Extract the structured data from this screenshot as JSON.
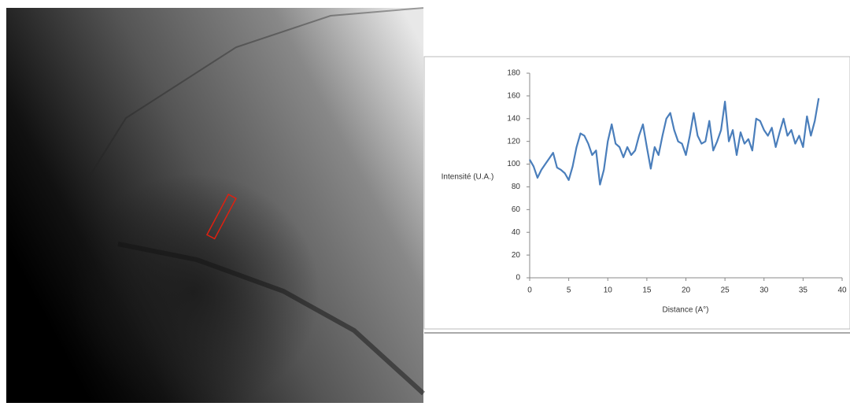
{
  "chart_data": {
    "type": "line",
    "xlabel": "Distance (A°)",
    "ylabel": "Intensité (U.A.)",
    "x": [
      0,
      0.5,
      1,
      1.5,
      2,
      2.5,
      3,
      3.5,
      4,
      4.5,
      5,
      5.5,
      6,
      6.5,
      7,
      7.5,
      8,
      8.5,
      9,
      9.5,
      10,
      10.5,
      11,
      11.5,
      12,
      12.5,
      13,
      13.5,
      14,
      14.5,
      15,
      15.5,
      16,
      16.5,
      17,
      17.5,
      18,
      18.5,
      19,
      19.5,
      20,
      20.5,
      21,
      21.5,
      22,
      22.5,
      23,
      23.5,
      24,
      24.5,
      25,
      25.5,
      26,
      26.5,
      27,
      27.5,
      28,
      28.5,
      29,
      29.5,
      30,
      30.5,
      31,
      31.5,
      32,
      32.5,
      33,
      33.5,
      34,
      34.5,
      35,
      35.5,
      36,
      36.5,
      37
    ],
    "series": [
      {
        "color": "#4a7ebb",
        "values": [
          104,
          98,
          88,
          95,
          100,
          105,
          110,
          97,
          95,
          92,
          86,
          98,
          115,
          127,
          125,
          118,
          108,
          112,
          82,
          95,
          120,
          135,
          118,
          115,
          106,
          115,
          108,
          112,
          125,
          135,
          115,
          96,
          115,
          108,
          125,
          140,
          145,
          130,
          120,
          118,
          108,
          125,
          145,
          125,
          118,
          120,
          138,
          112,
          120,
          130,
          155,
          120,
          130,
          108,
          128,
          118,
          122,
          112,
          140,
          138,
          130,
          125,
          132,
          115,
          128,
          140,
          125,
          130,
          118,
          125,
          115,
          142,
          125,
          138,
          158
        ]
      }
    ],
    "xlim": [
      0,
      40
    ],
    "xticks": [
      0,
      5,
      10,
      15,
      20,
      25,
      30,
      35,
      40
    ],
    "ylim": [
      0,
      180
    ],
    "yticks": [
      0,
      20,
      40,
      60,
      80,
      100,
      120,
      140,
      160,
      180
    ],
    "grid": false
  }
}
